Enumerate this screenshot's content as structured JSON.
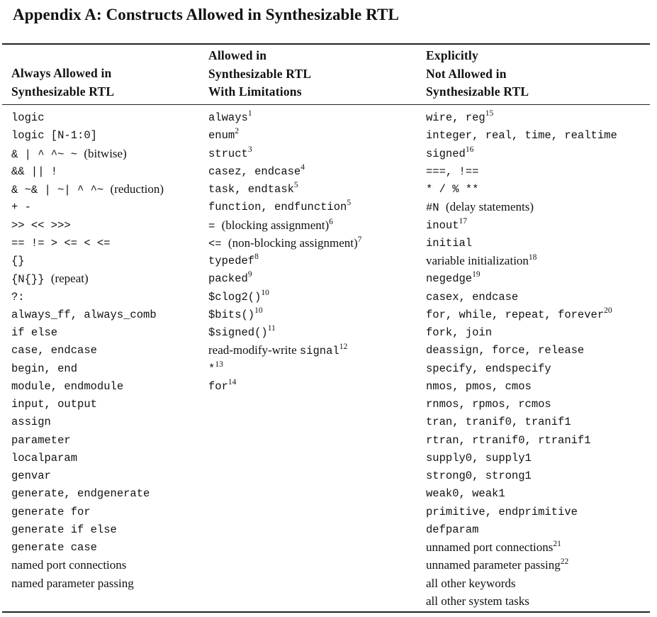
{
  "title": "Appendix A: Constructs Allowed in Synthesizable RTL",
  "headers": {
    "always": [
      "Always Allowed in",
      "Synthesizable RTL"
    ],
    "limited": [
      "Allowed in",
      "Synthesizable RTL",
      "With Limitations"
    ],
    "not_allowed": [
      "Explicitly",
      "Not Allowed in",
      "Synthesizable RTL"
    ]
  },
  "columns": {
    "always": [
      [
        {
          "c": "logic"
        }
      ],
      [
        {
          "c": "logic [N-1:0]"
        }
      ],
      [
        {
          "c": "& | ^ ^~ ~ "
        },
        {
          "t": "(bitwise)"
        }
      ],
      [
        {
          "c": "&& || !"
        }
      ],
      [
        {
          "c": "& ~& | ~| ^ ^~ "
        },
        {
          "t": "(reduction)"
        }
      ],
      [
        {
          "c": "+ -"
        }
      ],
      [
        {
          "c": ">> << >>>"
        }
      ],
      [
        {
          "c": "== != > <= < <="
        }
      ],
      [
        {
          "c": "{}"
        }
      ],
      [
        {
          "c": "{N{}} "
        },
        {
          "t": "(repeat)"
        }
      ],
      [
        {
          "c": "?:"
        }
      ],
      [
        {
          "c": "always_ff, always_comb"
        }
      ],
      [
        {
          "c": "if else"
        }
      ],
      [
        {
          "c": "case, endcase"
        }
      ],
      [
        {
          "c": "begin, end"
        }
      ],
      [
        {
          "c": "module, endmodule"
        }
      ],
      [
        {
          "c": "input, output"
        }
      ],
      [
        {
          "c": "assign"
        }
      ],
      [
        {
          "c": "parameter"
        }
      ],
      [
        {
          "c": "localparam"
        }
      ],
      [
        {
          "c": "genvar"
        }
      ],
      [
        {
          "c": "generate, endgenerate"
        }
      ],
      [
        {
          "c": "generate for"
        }
      ],
      [
        {
          "c": "generate if else"
        }
      ],
      [
        {
          "c": "generate case"
        }
      ],
      [
        {
          "t": "named port connections"
        }
      ],
      [
        {
          "t": "named parameter passing"
        }
      ]
    ],
    "limited": [
      [
        {
          "c": "always"
        },
        {
          "s": "1"
        }
      ],
      [
        {
          "c": "enum"
        },
        {
          "s": "2"
        }
      ],
      [
        {
          "c": "struct"
        },
        {
          "s": "3"
        }
      ],
      [
        {
          "c": "casez, endcase"
        },
        {
          "s": "4"
        }
      ],
      [
        {
          "c": "task, endtask"
        },
        {
          "s": "5"
        }
      ],
      [
        {
          "c": "function, endfunction"
        },
        {
          "s": "5"
        }
      ],
      [
        {
          "c": "= "
        },
        {
          "t": "(blocking assignment)"
        },
        {
          "s": "6"
        }
      ],
      [
        {
          "c": "<= "
        },
        {
          "t": "(non-blocking assignment)"
        },
        {
          "s": "7"
        }
      ],
      [
        {
          "c": "typedef"
        },
        {
          "s": "8"
        }
      ],
      [
        {
          "c": "packed"
        },
        {
          "s": "9"
        }
      ],
      [
        {
          "c": "$clog2()"
        },
        {
          "s": "10"
        }
      ],
      [
        {
          "c": "$bits()"
        },
        {
          "s": "10"
        }
      ],
      [
        {
          "c": "$signed()"
        },
        {
          "s": "11"
        }
      ],
      [
        {
          "t": "read-modify-write "
        },
        {
          "c": "signal"
        },
        {
          "s": "12"
        }
      ],
      [
        {
          "c": "*"
        },
        {
          "s": "13"
        }
      ],
      [
        {
          "c": "for"
        },
        {
          "s": "14"
        }
      ]
    ],
    "not_allowed": [
      [
        {
          "c": "wire, reg"
        },
        {
          "s": "15"
        }
      ],
      [
        {
          "c": "integer, real, time, realtime"
        }
      ],
      [
        {
          "c": "signed"
        },
        {
          "s": "16"
        }
      ],
      [
        {
          "c": "===, !=="
        }
      ],
      [
        {
          "c": "* / % **"
        }
      ],
      [
        {
          "c": "#N "
        },
        {
          "t": "(delay statements)"
        }
      ],
      [
        {
          "c": "inout"
        },
        {
          "s": "17"
        }
      ],
      [
        {
          "c": "initial"
        }
      ],
      [
        {
          "t": "variable initialization"
        },
        {
          "s": "18"
        }
      ],
      [
        {
          "c": "negedge"
        },
        {
          "s": "19"
        }
      ],
      [
        {
          "c": "casex, endcase"
        }
      ],
      [
        {
          "c": "for, while, repeat, forever"
        },
        {
          "s": "20"
        }
      ],
      [
        {
          "c": "fork, join"
        }
      ],
      [
        {
          "c": "deassign, force, release"
        }
      ],
      [
        {
          "c": "specify, endspecify"
        }
      ],
      [
        {
          "c": "nmos, pmos, cmos"
        }
      ],
      [
        {
          "c": "rnmos, rpmos, rcmos"
        }
      ],
      [
        {
          "c": "tran, tranif0, tranif1"
        }
      ],
      [
        {
          "c": "rtran, rtranif0, rtranif1"
        }
      ],
      [
        {
          "c": "supply0, supply1"
        }
      ],
      [
        {
          "c": "strong0, strong1"
        }
      ],
      [
        {
          "c": "weak0, weak1"
        }
      ],
      [
        {
          "c": "primitive, endprimitive"
        }
      ],
      [
        {
          "c": "defparam"
        }
      ],
      [
        {
          "t": "unnamed port connections"
        },
        {
          "s": "21"
        }
      ],
      [
        {
          "t": "unnamed parameter passing"
        },
        {
          "s": "22"
        }
      ],
      [
        {
          "t": "all other keywords"
        }
      ],
      [
        {
          "t": "all other system tasks"
        }
      ]
    ]
  }
}
